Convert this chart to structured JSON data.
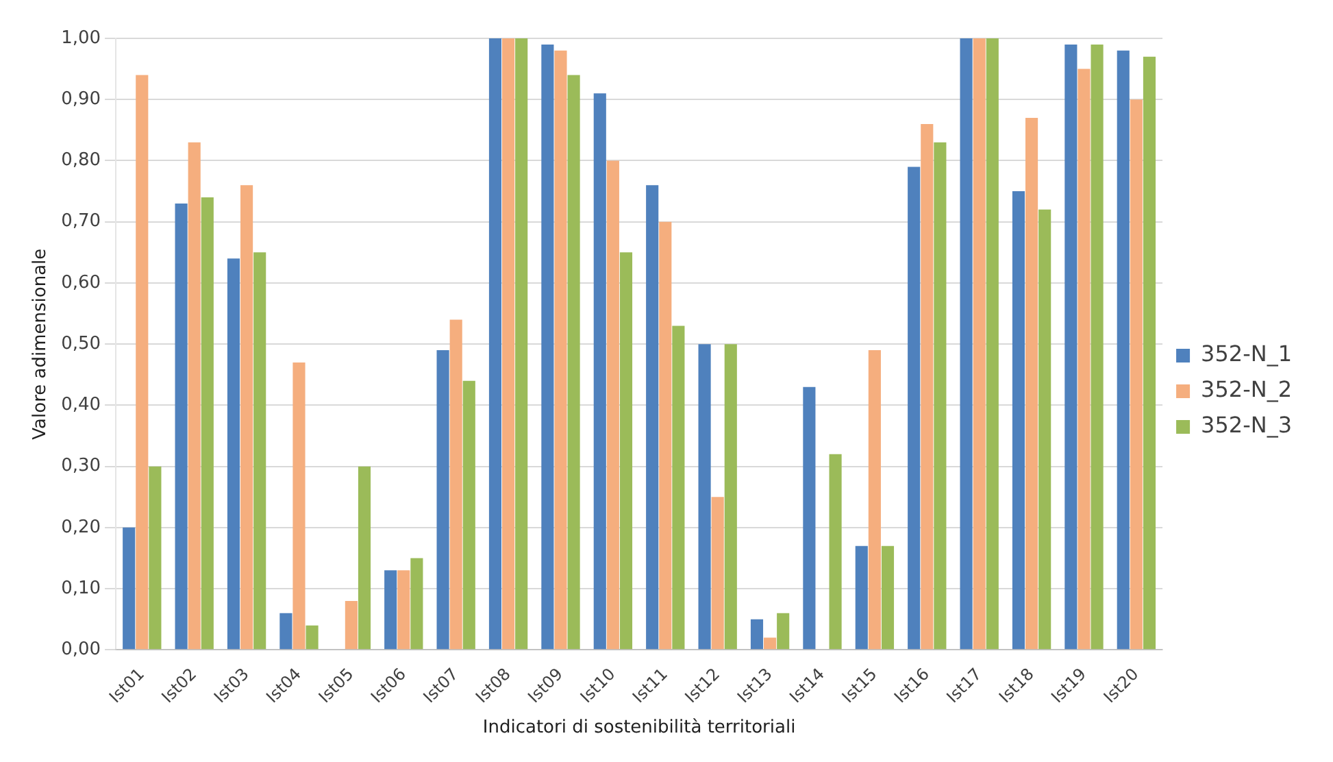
{
  "chart_data": {
    "type": "bar",
    "xlabel": "Indicatori di sostenibilità territoriali",
    "ylabel": "Valore adimensionale",
    "categories": [
      "Ist01",
      "Ist02",
      "Ist03",
      "Ist04",
      "Ist05",
      "Ist06",
      "Ist07",
      "Ist08",
      "Ist09",
      "Ist10",
      "Ist11",
      "Ist12",
      "Ist13",
      "Ist14",
      "Ist15",
      "Ist16",
      "Ist17",
      "Ist18",
      "Ist19",
      "Ist20"
    ],
    "series": [
      {
        "name": "352-N_1",
        "color": "#4f81bd",
        "values": [
          0.2,
          0.73,
          0.64,
          0.06,
          0.0,
          0.13,
          0.49,
          1.0,
          0.99,
          0.91,
          0.76,
          0.5,
          0.05,
          0.43,
          0.17,
          0.79,
          1.0,
          0.75,
          0.99,
          0.98
        ]
      },
      {
        "name": "352-N_2",
        "color": "#f5ae7e",
        "values": [
          0.94,
          0.83,
          0.76,
          0.47,
          0.08,
          0.13,
          0.54,
          1.0,
          0.98,
          0.8,
          0.7,
          0.25,
          0.02,
          0.0,
          0.49,
          0.86,
          1.0,
          0.87,
          0.95,
          0.9
        ]
      },
      {
        "name": "352-N_3",
        "color": "#9bbb59",
        "values": [
          0.3,
          0.74,
          0.65,
          0.04,
          0.3,
          0.15,
          0.44,
          1.0,
          0.94,
          0.65,
          0.53,
          0.5,
          0.06,
          0.32,
          0.17,
          0.83,
          1.0,
          0.72,
          0.99,
          0.97
        ]
      }
    ],
    "ylim": [
      0,
      1
    ],
    "yticks": [
      {
        "value": 0,
        "label": "0,00"
      },
      {
        "value": 0.1,
        "label": "0,10"
      },
      {
        "value": 0.2,
        "label": "0,20"
      },
      {
        "value": 0.3,
        "label": "0,30"
      },
      {
        "value": 0.4,
        "label": "0,40"
      },
      {
        "value": 0.5,
        "label": "0,50"
      },
      {
        "value": 0.6,
        "label": "0,60"
      },
      {
        "value": 0.7,
        "label": "0,70"
      },
      {
        "value": 0.8,
        "label": "0,80"
      },
      {
        "value": 0.9,
        "label": "0,90"
      },
      {
        "value": 1,
        "label": "1,00"
      }
    ],
    "grid": "y",
    "legend": "right"
  }
}
